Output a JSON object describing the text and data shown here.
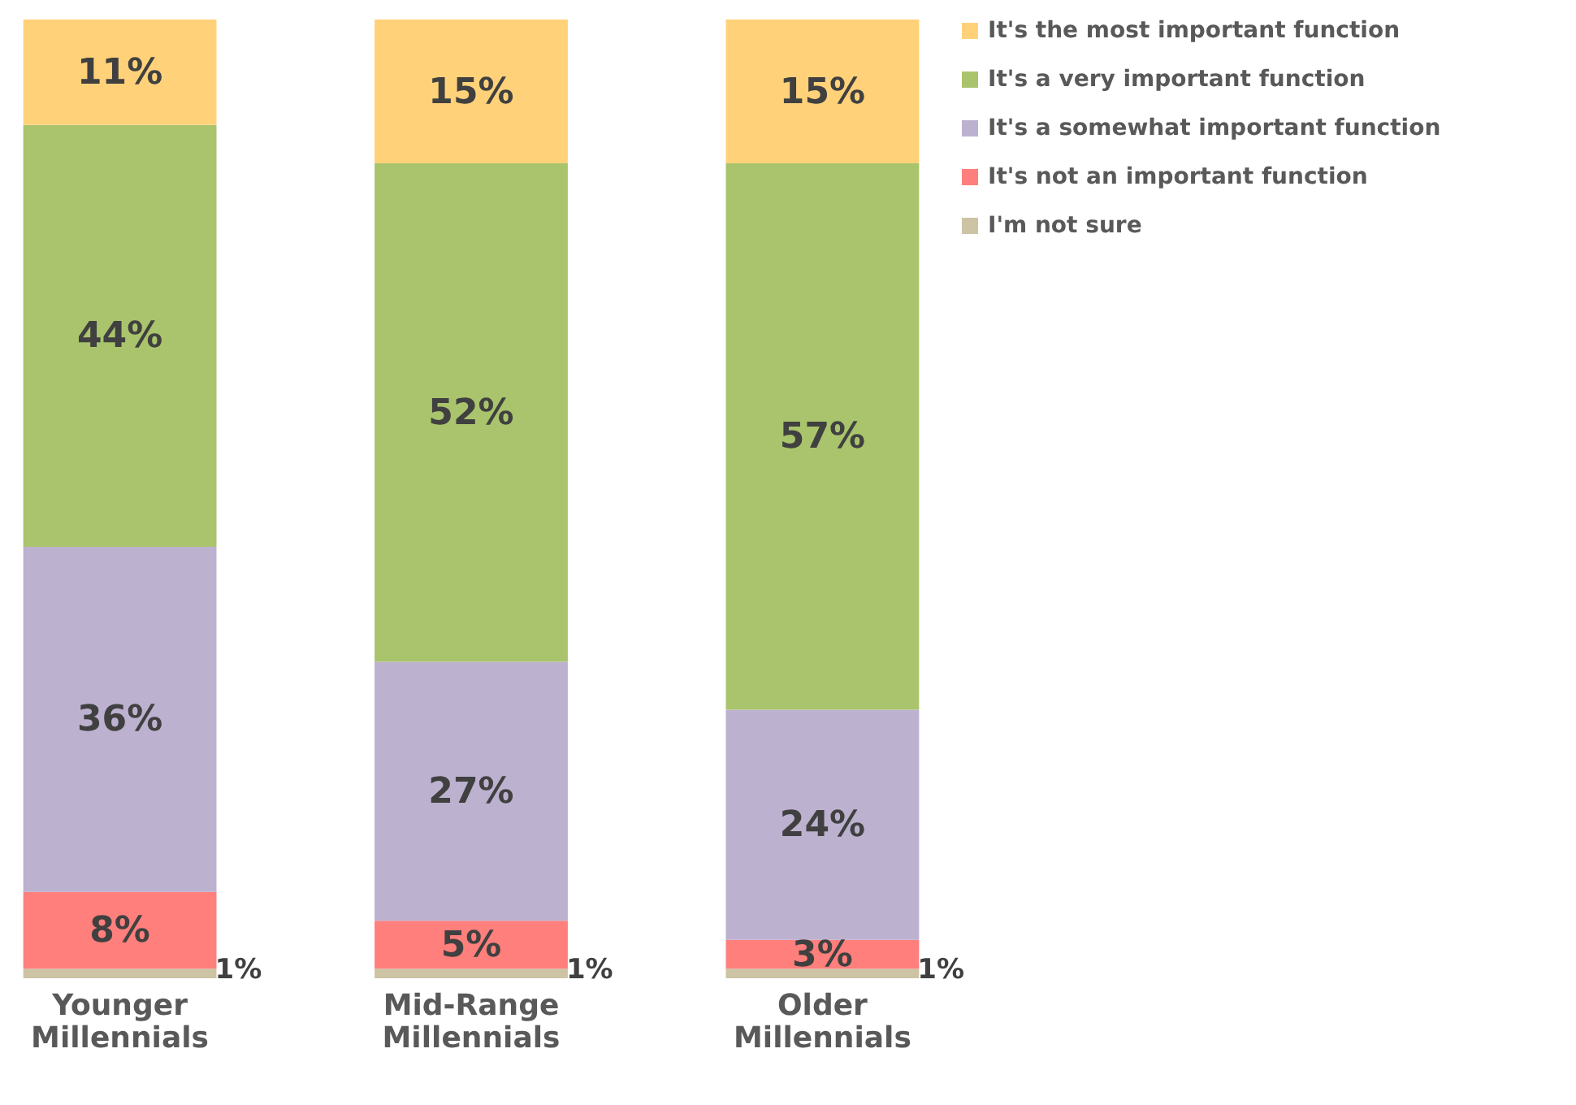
{
  "chart_data": {
    "type": "bar",
    "stacked": true,
    "tick_labels": "x",
    "legend": "right",
    "categories": [
      "Younger Millennials",
      "Mid-Range Millennials",
      "Older Millennials"
    ],
    "series": [
      {
        "name": "I'm not sure",
        "color": "#cdc3a5",
        "values": [
          1,
          1,
          1
        ],
        "value_labels": [
          "1%",
          "1%",
          "1%"
        ]
      },
      {
        "name": "It's not an important function",
        "color": "#fe7f7b",
        "values": [
          8,
          5,
          3
        ],
        "value_labels": [
          "8%",
          "5%",
          "3%"
        ]
      },
      {
        "name": "It's a somewhat important function",
        "color": "#bdb1d0",
        "values": [
          36,
          27,
          24
        ],
        "value_labels": [
          "36%",
          "27%",
          "24%"
        ]
      },
      {
        "name": "It's a very important function",
        "color": "#a9c46c",
        "values": [
          44,
          52,
          57
        ],
        "value_labels": [
          "44%",
          "52%",
          "57%"
        ]
      },
      {
        "name": "It's the most important function",
        "color": "#ffd27a",
        "values": [
          11,
          15,
          15
        ],
        "value_labels": [
          "11%",
          "15%",
          "15%"
        ]
      }
    ]
  }
}
